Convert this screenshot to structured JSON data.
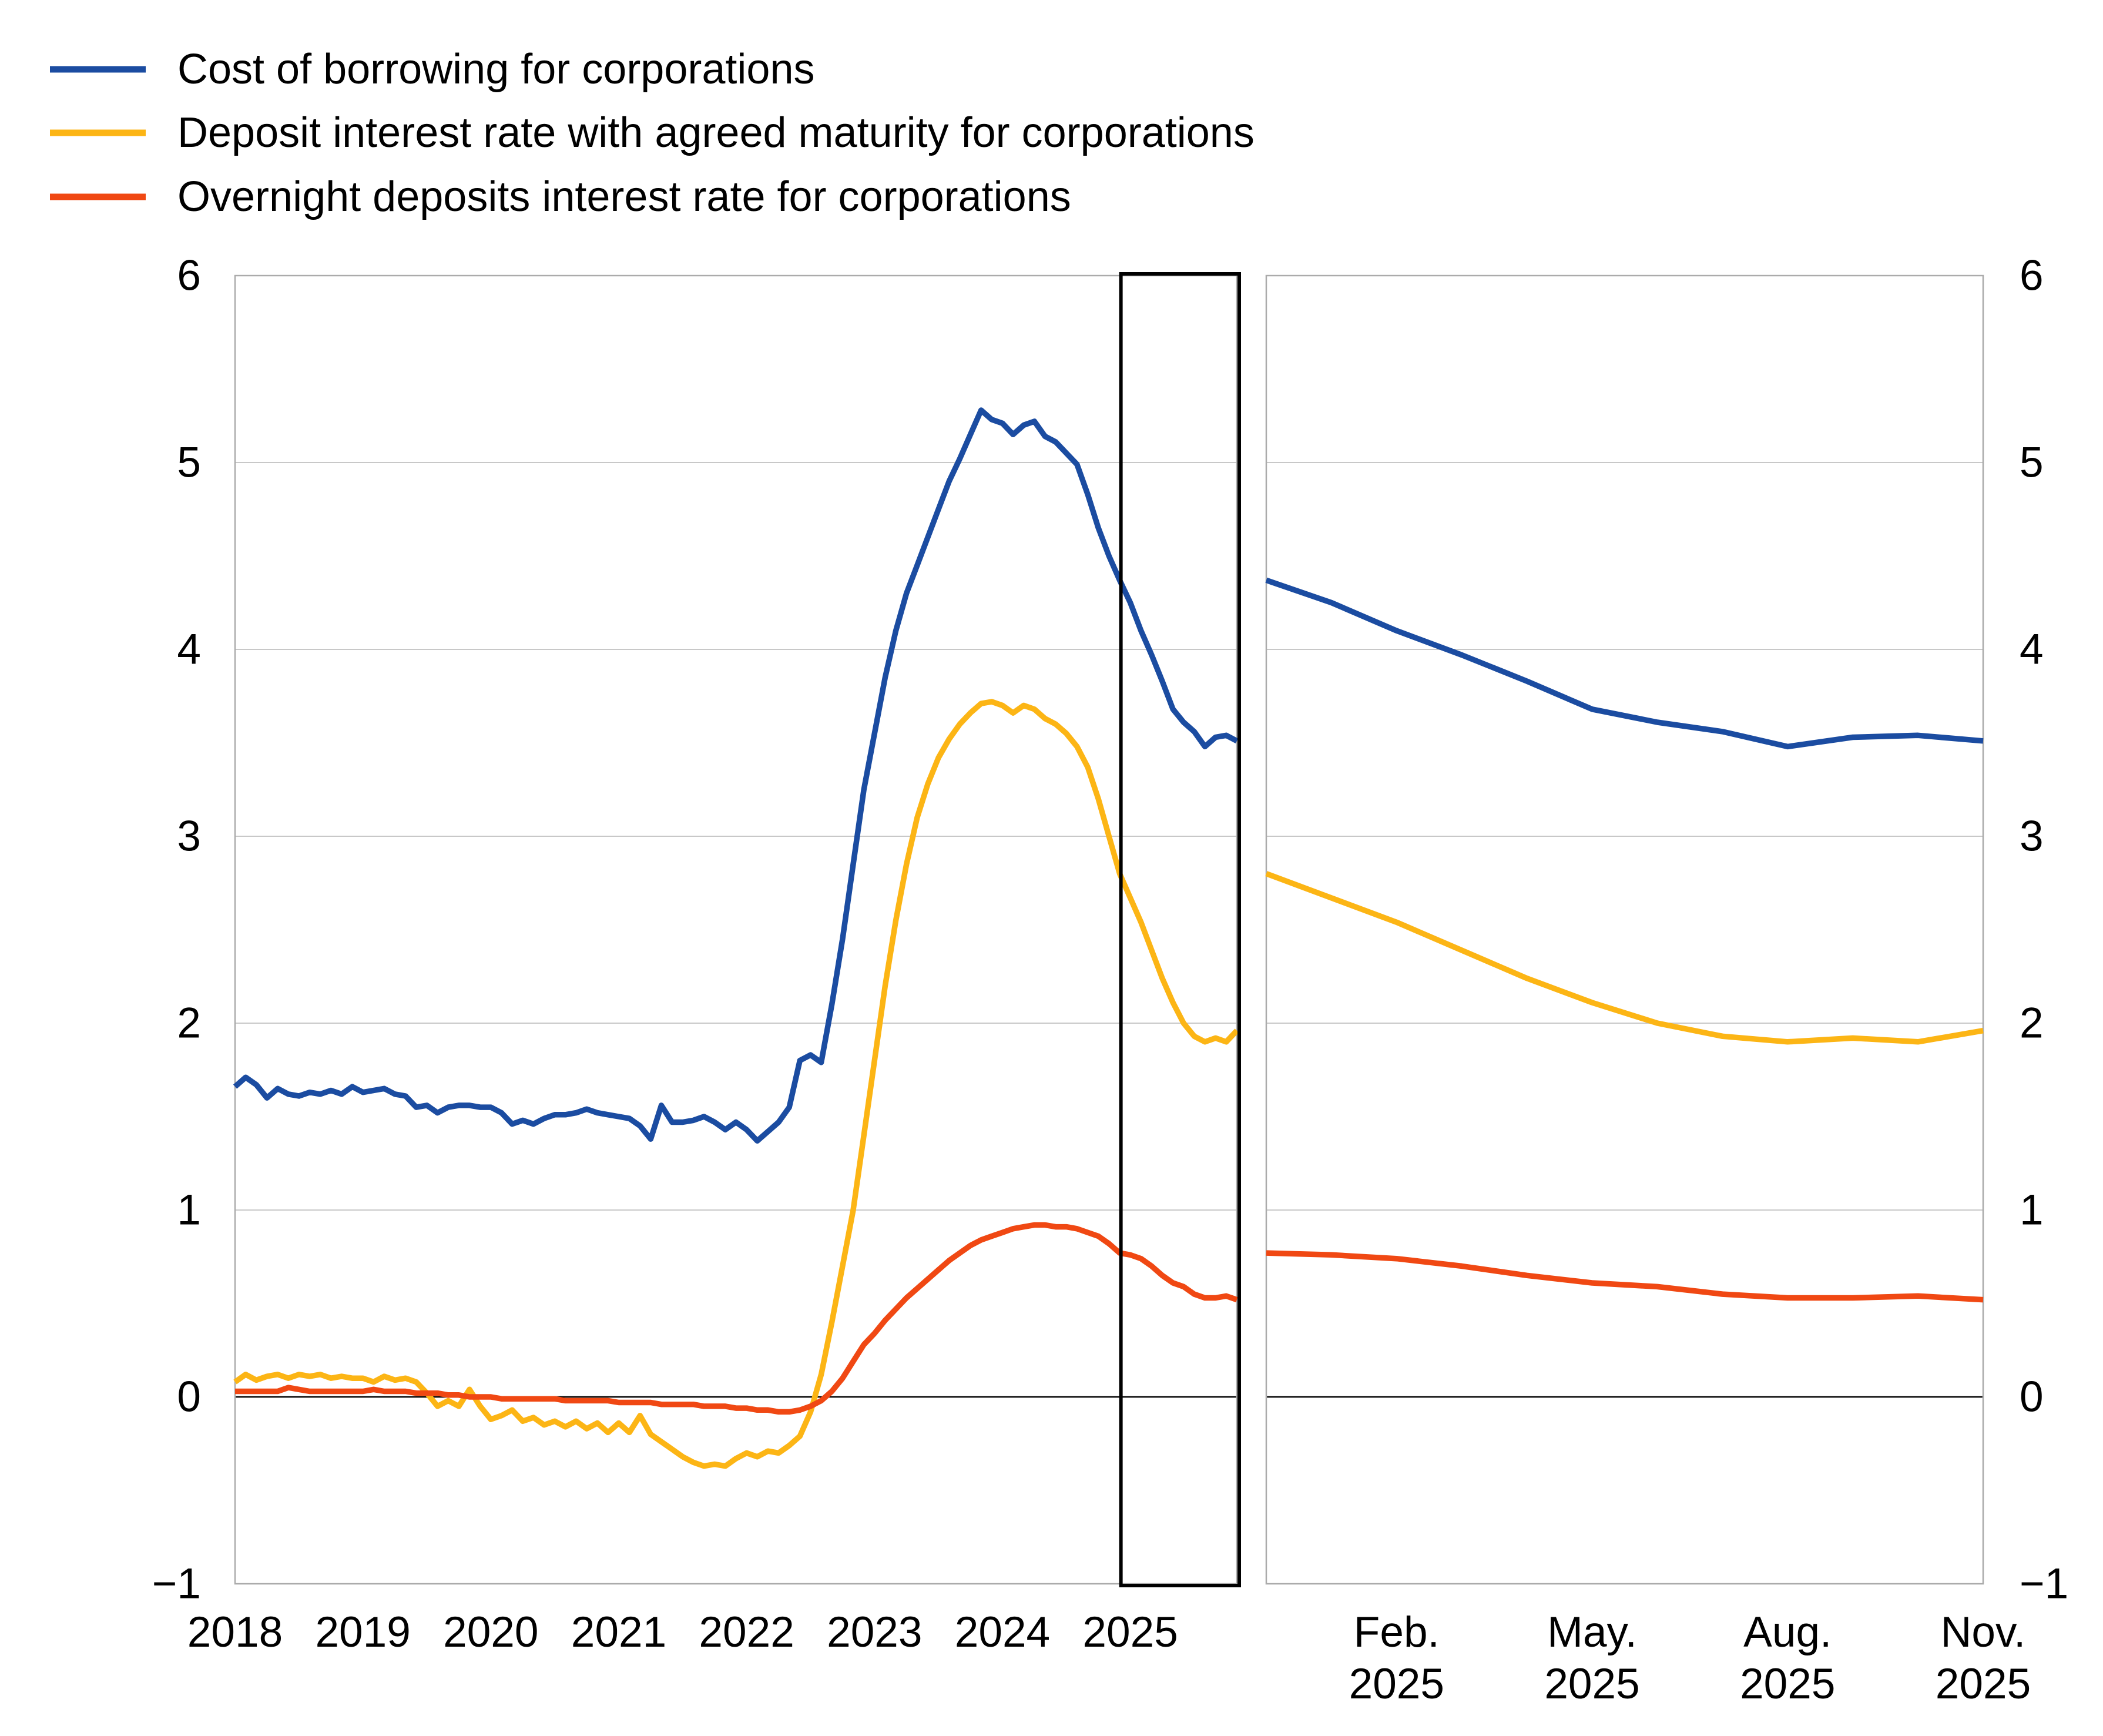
{
  "legend": {
    "items": [
      {
        "label": "Cost of borrowing for corporations",
        "color": "#1B4CA1"
      },
      {
        "label": "Deposit interest rate with agreed maturity for corporations",
        "color": "#FCB515"
      },
      {
        "label": "Overnight deposits interest rate for corporations",
        "color": "#F04813"
      }
    ]
  },
  "chart_data": {
    "type": "line",
    "title": "",
    "ylim": [
      -1,
      6
    ],
    "y_ticks": [
      6,
      5,
      4,
      3,
      2,
      1,
      0,
      -1
    ],
    "y_tick_labels": [
      "6",
      "5",
      "4",
      "3",
      "2",
      "1",
      "0",
      "−1"
    ],
    "grid": "horizontal",
    "zero_line": true,
    "colors": {
      "grid": "#C8C8C8",
      "panel_border": "#ABABAB",
      "zero_line": "#000000",
      "highlight_box": "#000000"
    },
    "panels": {
      "left": {
        "x_range": [
          "2018-01",
          "2025-11"
        ],
        "x_ticks": [
          {
            "label": "2018",
            "month": "2018-01"
          },
          {
            "label": "2019",
            "month": "2019-01"
          },
          {
            "label": "2020",
            "month": "2020-01"
          },
          {
            "label": "2021",
            "month": "2021-01"
          },
          {
            "label": "2022",
            "month": "2022-01"
          },
          {
            "label": "2023",
            "month": "2023-01"
          },
          {
            "label": "2024",
            "month": "2024-01"
          },
          {
            "label": "2025",
            "month": "2025-01"
          }
        ],
        "highlight_box": {
          "from": "2025-01",
          "to": "2025-11"
        }
      },
      "right": {
        "x_range": [
          "2024-12",
          "2025-11"
        ],
        "x_ticks": [
          {
            "line1": "Feb.",
            "line2": "2025",
            "month": "2025-02"
          },
          {
            "line1": "May.",
            "line2": "2025",
            "month": "2025-05"
          },
          {
            "line1": "Aug.",
            "line2": "2025",
            "month": "2025-08"
          },
          {
            "line1": "Nov.",
            "line2": "2025",
            "month": "2025-11"
          }
        ]
      }
    },
    "series": [
      {
        "name": "Cost of borrowing for corporations",
        "color": "#1B4CA1",
        "start": "2018-01",
        "values": [
          1.66,
          1.71,
          1.67,
          1.6,
          1.65,
          1.62,
          1.61,
          1.63,
          1.62,
          1.64,
          1.62,
          1.66,
          1.63,
          1.64,
          1.65,
          1.62,
          1.61,
          1.55,
          1.56,
          1.52,
          1.55,
          1.56,
          1.56,
          1.55,
          1.55,
          1.52,
          1.46,
          1.48,
          1.46,
          1.49,
          1.51,
          1.51,
          1.52,
          1.54,
          1.52,
          1.51,
          1.5,
          1.49,
          1.45,
          1.38,
          1.56,
          1.47,
          1.47,
          1.48,
          1.5,
          1.47,
          1.43,
          1.47,
          1.43,
          1.37,
          1.42,
          1.47,
          1.55,
          1.8,
          1.83,
          1.79,
          2.1,
          2.45,
          2.85,
          3.25,
          3.55,
          3.85,
          4.1,
          4.3,
          4.45,
          4.6,
          4.75,
          4.9,
          5.02,
          5.15,
          5.28,
          5.23,
          5.21,
          5.15,
          5.2,
          5.22,
          5.14,
          5.11,
          5.05,
          4.99,
          4.83,
          4.65,
          4.5,
          4.37,
          4.25,
          4.1,
          3.97,
          3.83,
          3.68,
          3.61,
          3.56,
          3.48,
          3.53,
          3.54,
          3.51
        ]
      },
      {
        "name": "Deposit interest rate with agreed maturity for corporations",
        "color": "#FCB515",
        "start": "2018-01",
        "values": [
          0.08,
          0.12,
          0.09,
          0.11,
          0.12,
          0.1,
          0.12,
          0.11,
          0.12,
          0.1,
          0.11,
          0.1,
          0.1,
          0.08,
          0.11,
          0.09,
          0.1,
          0.08,
          0.02,
          -0.05,
          -0.02,
          -0.05,
          0.04,
          -0.05,
          -0.12,
          -0.1,
          -0.07,
          -0.13,
          -0.11,
          -0.15,
          -0.13,
          -0.16,
          -0.13,
          -0.17,
          -0.14,
          -0.19,
          -0.14,
          -0.19,
          -0.1,
          -0.2,
          -0.24,
          -0.28,
          -0.32,
          -0.35,
          -0.37,
          -0.36,
          -0.37,
          -0.33,
          -0.3,
          -0.32,
          -0.29,
          -0.3,
          -0.26,
          -0.21,
          -0.08,
          0.12,
          0.4,
          0.7,
          1.0,
          1.4,
          1.8,
          2.2,
          2.55,
          2.85,
          3.1,
          3.28,
          3.42,
          3.52,
          3.6,
          3.66,
          3.71,
          3.72,
          3.7,
          3.66,
          3.7,
          3.68,
          3.63,
          3.6,
          3.55,
          3.48,
          3.37,
          3.2,
          3.0,
          2.8,
          2.67,
          2.54,
          2.39,
          2.24,
          2.11,
          2.0,
          1.93,
          1.9,
          1.92,
          1.9,
          1.96
        ]
      },
      {
        "name": "Overnight deposits interest rate for corporations",
        "color": "#F04813",
        "start": "2018-01",
        "values": [
          0.03,
          0.03,
          0.03,
          0.03,
          0.03,
          0.05,
          0.04,
          0.03,
          0.03,
          0.03,
          0.03,
          0.03,
          0.03,
          0.04,
          0.03,
          0.03,
          0.03,
          0.02,
          0.02,
          0.02,
          0.01,
          0.01,
          0.0,
          0.0,
          0.0,
          -0.01,
          -0.01,
          -0.01,
          -0.01,
          -0.01,
          -0.01,
          -0.02,
          -0.02,
          -0.02,
          -0.02,
          -0.02,
          -0.03,
          -0.03,
          -0.03,
          -0.03,
          -0.04,
          -0.04,
          -0.04,
          -0.04,
          -0.05,
          -0.05,
          -0.05,
          -0.06,
          -0.06,
          -0.07,
          -0.07,
          -0.08,
          -0.08,
          -0.07,
          -0.05,
          -0.02,
          0.03,
          0.1,
          0.19,
          0.28,
          0.34,
          0.41,
          0.47,
          0.53,
          0.58,
          0.63,
          0.68,
          0.73,
          0.77,
          0.81,
          0.84,
          0.86,
          0.88,
          0.9,
          0.91,
          0.92,
          0.92,
          0.91,
          0.91,
          0.9,
          0.88,
          0.86,
          0.82,
          0.77,
          0.76,
          0.74,
          0.7,
          0.65,
          0.61,
          0.59,
          0.55,
          0.53,
          0.53,
          0.54,
          0.52
        ]
      }
    ]
  }
}
